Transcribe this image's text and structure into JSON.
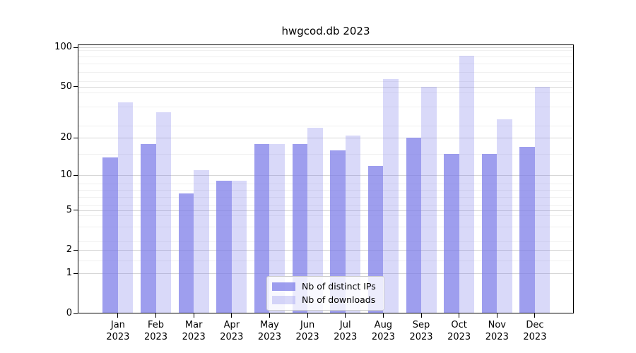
{
  "title": "hwgcod.db 2023",
  "chart_data": {
    "type": "bar",
    "title": "hwgcod.db 2023",
    "categories": [
      "Jan 2023",
      "Feb 2023",
      "Mar 2023",
      "Apr 2023",
      "May 2023",
      "Jun 2023",
      "Jul 2023",
      "Aug 2023",
      "Sep 2023",
      "Oct 2023",
      "Nov 2023",
      "Dec 2023"
    ],
    "series": [
      {
        "name": "Nb of distinct IPs",
        "color": "#7878e8",
        "opacity": 0.72,
        "values": [
          14,
          18,
          7,
          9,
          18,
          18,
          16,
          12,
          20,
          15,
          15,
          17
        ]
      },
      {
        "name": "Nb of downloads",
        "color": "#7878e8",
        "opacity": 0.28,
        "values": [
          38,
          32,
          11,
          9,
          18,
          24,
          21,
          57,
          50,
          86,
          28,
          50
        ]
      }
    ],
    "xlabel": "",
    "ylabel": "",
    "yscale": "log1p",
    "yticks": [
      0,
      1,
      2,
      5,
      10,
      20,
      50,
      100
    ],
    "ylim": [
      0,
      104
    ],
    "grid": true,
    "legend_position": "lower center inside"
  },
  "colors": {
    "bar_accent": "#7878e8",
    "grid_major": "#d6d6d6",
    "grid_minor": "#f0f0f0",
    "spine": "#000000",
    "legend_border": "#cccccc"
  }
}
